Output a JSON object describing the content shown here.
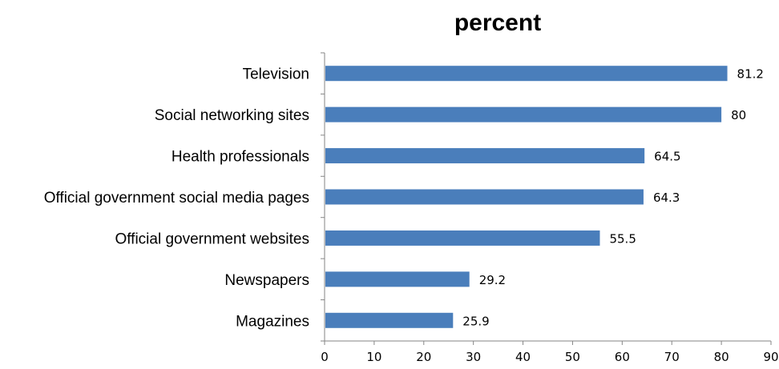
{
  "chart_data": {
    "type": "bar",
    "orientation": "horizontal",
    "title": "percent",
    "xlabel": "",
    "ylabel": "",
    "categories": [
      "Television",
      "Social networking sites",
      "Health professionals",
      "Official government social media pages",
      "Official government websites",
      "Newspapers",
      "Magazines"
    ],
    "values": [
      81.2,
      80,
      64.5,
      64.3,
      55.5,
      29.2,
      25.9
    ],
    "value_labels": [
      "81.2",
      "80",
      "64.5",
      "64.3",
      "55.5",
      "29.2",
      "25.9"
    ],
    "xlim": [
      0,
      90
    ],
    "xticks": [
      "0",
      "10",
      "20",
      "30",
      "40",
      "50",
      "60",
      "70",
      "80",
      "90"
    ],
    "grid": false,
    "legend": "none",
    "bar_color": "#4a7ebb"
  }
}
